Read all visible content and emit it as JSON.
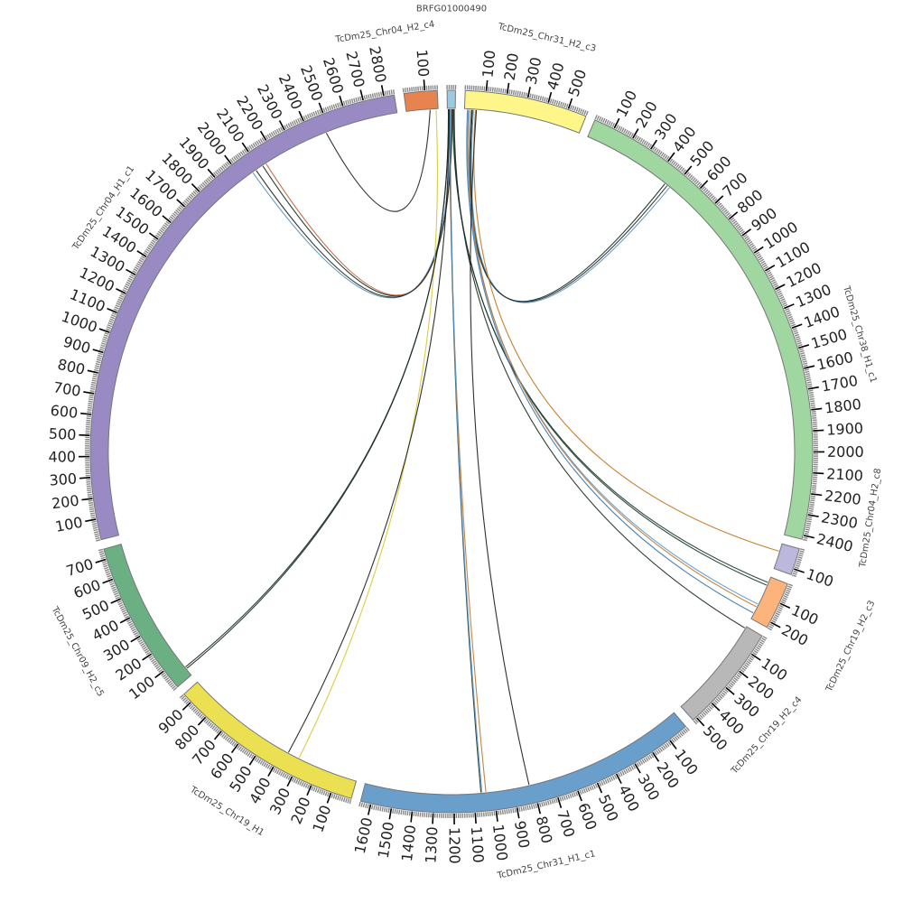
{
  "diagram": {
    "type": "circos",
    "units_per_tick": 100,
    "units_per_minor_tick": 10,
    "segments": [
      {
        "name": "BRFG01000490",
        "length": 40,
        "color": "#9ecae1",
        "show_ticks": false
      },
      {
        "name": "TcDm25_Chr31_H2_c3",
        "length": 590,
        "color": "#fff68a",
        "show_ticks": true
      },
      {
        "name": "TcDm25_Chr38_H1_c1",
        "length": 2420,
        "color": "#a0d6a0",
        "show_ticks": true,
        "label_at": 0.5
      },
      {
        "name": "TcDm25_Chr04_H2_c8",
        "length": 130,
        "color": "#bcb7dd",
        "show_ticks": true
      },
      {
        "name": "TcDm25_Chr19_H2_c3",
        "length": 230,
        "color": "#fdb47c",
        "show_ticks": true
      },
      {
        "name": "TcDm25_Chr19_H2_c4",
        "length": 520,
        "color": "#b8b8b8",
        "show_ticks": true
      },
      {
        "name": "TcDm25_Chr31_H1_c1",
        "length": 1650,
        "color": "#6a9ecb",
        "show_ticks": true
      },
      {
        "name": "TcDm25_Chr19_H1",
        "length": 950,
        "color": "#ebdf52",
        "show_ticks": true
      },
      {
        "name": "TcDm25_Chr09_H2_c5",
        "length": 750,
        "color": "#6ab083",
        "show_ticks": true
      },
      {
        "name": "TcDm25_Chr04_H1_c1",
        "length": 2850,
        "color": "#9a8ac4",
        "show_ticks": true,
        "label_at": 0.52
      },
      {
        "name": "TcDm25_Chr04_H2_c4",
        "length": 160,
        "color": "#e8834f",
        "show_ticks": true
      }
    ],
    "links": [
      {
        "from": [
          "BRFG01000490",
          20
        ],
        "to": [
          "TcDm25_Chr04_H1_c1",
          2120
        ],
        "color": "#1a2a20"
      },
      {
        "from": [
          "BRFG01000490",
          22
        ],
        "to": [
          "TcDm25_Chr04_H1_c1",
          2140
        ],
        "color": "#c0603a"
      },
      {
        "from": [
          "BRFG01000490",
          18
        ],
        "to": [
          "TcDm25_Chr04_H1_c1",
          2060
        ],
        "color": "#5a8fc0"
      },
      {
        "from": [
          "BRFG01000490",
          25
        ],
        "to": [
          "TcDm25_Chr04_H1_c1",
          2080
        ],
        "color": "#1a2a20"
      },
      {
        "from": [
          "TcDm25_Chr04_H2_c4",
          120
        ],
        "to": [
          "TcDm25_Chr04_H1_c1",
          2480
        ],
        "color": "#1a1a1a"
      },
      {
        "from": [
          "TcDm25_Chr31_H2_c3",
          40
        ],
        "to": [
          "TcDm25_Chr38_H1_c1",
          470
        ],
        "color": "#1a2a20"
      },
      {
        "from": [
          "TcDm25_Chr31_H2_c3",
          45
        ],
        "to": [
          "TcDm25_Chr38_H1_c1",
          485
        ],
        "color": "#5a8fc0"
      },
      {
        "from": [
          "TcDm25_Chr31_H2_c3",
          35
        ],
        "to": [
          "TcDm25_Chr38_H1_c1",
          455
        ],
        "color": "#1a2a20"
      },
      {
        "from": [
          "TcDm25_Chr31_H2_c3",
          55
        ],
        "to": [
          "TcDm25_Chr04_H2_c8",
          40
        ],
        "color": "#c07820"
      },
      {
        "from": [
          "BRFG01000490",
          28
        ],
        "to": [
          "TcDm25_Chr19_H2_c3",
          30
        ],
        "color": "#1a3a2a"
      },
      {
        "from": [
          "BRFG01000490",
          30
        ],
        "to": [
          "TcDm25_Chr19_H2_c3",
          45
        ],
        "color": "#1a3a2a"
      },
      {
        "from": [
          "TcDm25_Chr31_H2_c3",
          20
        ],
        "to": [
          "TcDm25_Chr19_H2_c3",
          150
        ],
        "color": "#5a9ad0"
      },
      {
        "from": [
          "TcDm25_Chr31_H2_c3",
          25
        ],
        "to": [
          "TcDm25_Chr19_H2_c3",
          165
        ],
        "color": "#c07830"
      },
      {
        "from": [
          "TcDm25_Chr31_H2_c3",
          15
        ],
        "to": [
          "TcDm25_Chr19_H2_c3",
          200
        ],
        "color": "#3a7ab0"
      },
      {
        "from": [
          "BRFG01000490",
          35
        ],
        "to": [
          "TcDm25_Chr19_H2_c4",
          10
        ],
        "color": "#1a2a20"
      },
      {
        "from": [
          "BRFG01000490",
          10
        ],
        "to": [
          "TcDm25_Chr31_H1_c1",
          1040
        ],
        "color": "#c07830"
      },
      {
        "from": [
          "BRFG01000490",
          12
        ],
        "to": [
          "TcDm25_Chr31_H1_c1",
          1065
        ],
        "color": "#1a2a20"
      },
      {
        "from": [
          "BRFG01000490",
          14
        ],
        "to": [
          "TcDm25_Chr31_H1_c1",
          1060
        ],
        "color": "#5a9ad0"
      },
      {
        "from": [
          "TcDm25_Chr31_H2_c3",
          60
        ],
        "to": [
          "TcDm25_Chr31_H1_c1",
          820
        ],
        "color": "#1a1a1a"
      },
      {
        "from": [
          "TcDm25_Chr04_H2_c4",
          150
        ],
        "to": [
          "TcDm25_Chr19_H1",
          310
        ],
        "color": "#d8c830"
      },
      {
        "from": [
          "BRFG01000490",
          8
        ],
        "to": [
          "TcDm25_Chr19_H1",
          370
        ],
        "color": "#1a1a1a"
      },
      {
        "from": [
          "BRFG01000490",
          5
        ],
        "to": [
          "TcDm25_Chr09_H2_c5",
          40
        ],
        "color": "#1a2a20"
      },
      {
        "from": [
          "BRFG01000490",
          6
        ],
        "to": [
          "TcDm25_Chr09_H2_c5",
          50
        ],
        "color": "#1a2a20"
      }
    ]
  }
}
